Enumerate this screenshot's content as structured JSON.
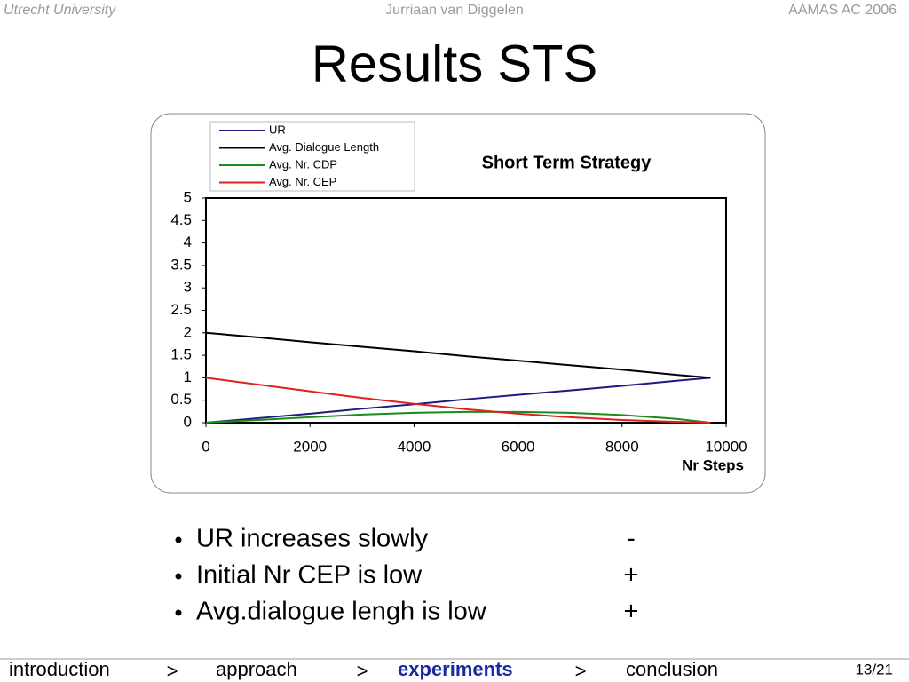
{
  "header": {
    "left": "Utrecht University",
    "center": "Jurriaan van Diggelen",
    "right": "AAMAS AC 2006"
  },
  "title": "Results STS",
  "chart_data": {
    "type": "line",
    "title": "Short Term Strategy",
    "xlabel": "Nr Steps",
    "x": [
      0,
      1000,
      2000,
      3000,
      4000,
      5000,
      6000,
      7000,
      8000,
      9000,
      9700
    ],
    "series": [
      {
        "name": "UR",
        "color": "#1c1c80",
        "values": [
          0,
          0.1,
          0.2,
          0.31,
          0.41,
          0.52,
          0.62,
          0.72,
          0.82,
          0.93,
          1
        ]
      },
      {
        "name": "Avg. Dialogue Length",
        "color": "#000000",
        "values": [
          2,
          1.9,
          1.79,
          1.69,
          1.59,
          1.48,
          1.38,
          1.28,
          1.18,
          1.07,
          1
        ]
      },
      {
        "name": "Avg. Nr. CDP",
        "color": "#1a8c1a",
        "values": [
          0,
          0.06,
          0.12,
          0.18,
          0.22,
          0.24,
          0.24,
          0.22,
          0.17,
          0.09,
          0
        ]
      },
      {
        "name": "Avg. Nr. CEP",
        "color": "#e02020",
        "values": [
          1,
          0.85,
          0.7,
          0.55,
          0.42,
          0.3,
          0.2,
          0.12,
          0.06,
          0.02,
          0
        ]
      }
    ],
    "xlim": [
      0,
      10000
    ],
    "xticks": [
      0,
      2000,
      4000,
      6000,
      8000,
      10000
    ],
    "ylim": [
      0,
      5
    ],
    "yticks": [
      0,
      0.5,
      1,
      1.5,
      2,
      2.5,
      3,
      3.5,
      4,
      4.5,
      5
    ],
    "grid": false,
    "legend": "top-left"
  },
  "bullets": [
    {
      "text": "UR increases slowly",
      "mark": "-"
    },
    {
      "text": "Initial Nr CEP is low",
      "mark": "+"
    },
    {
      "text": "Avg.dialogue lengh is low",
      "mark": "+"
    }
  ],
  "footer": {
    "nav": [
      "introduction",
      ">",
      "approach",
      ">",
      "experiments",
      ">",
      "conclusion"
    ],
    "page": "13/21"
  }
}
